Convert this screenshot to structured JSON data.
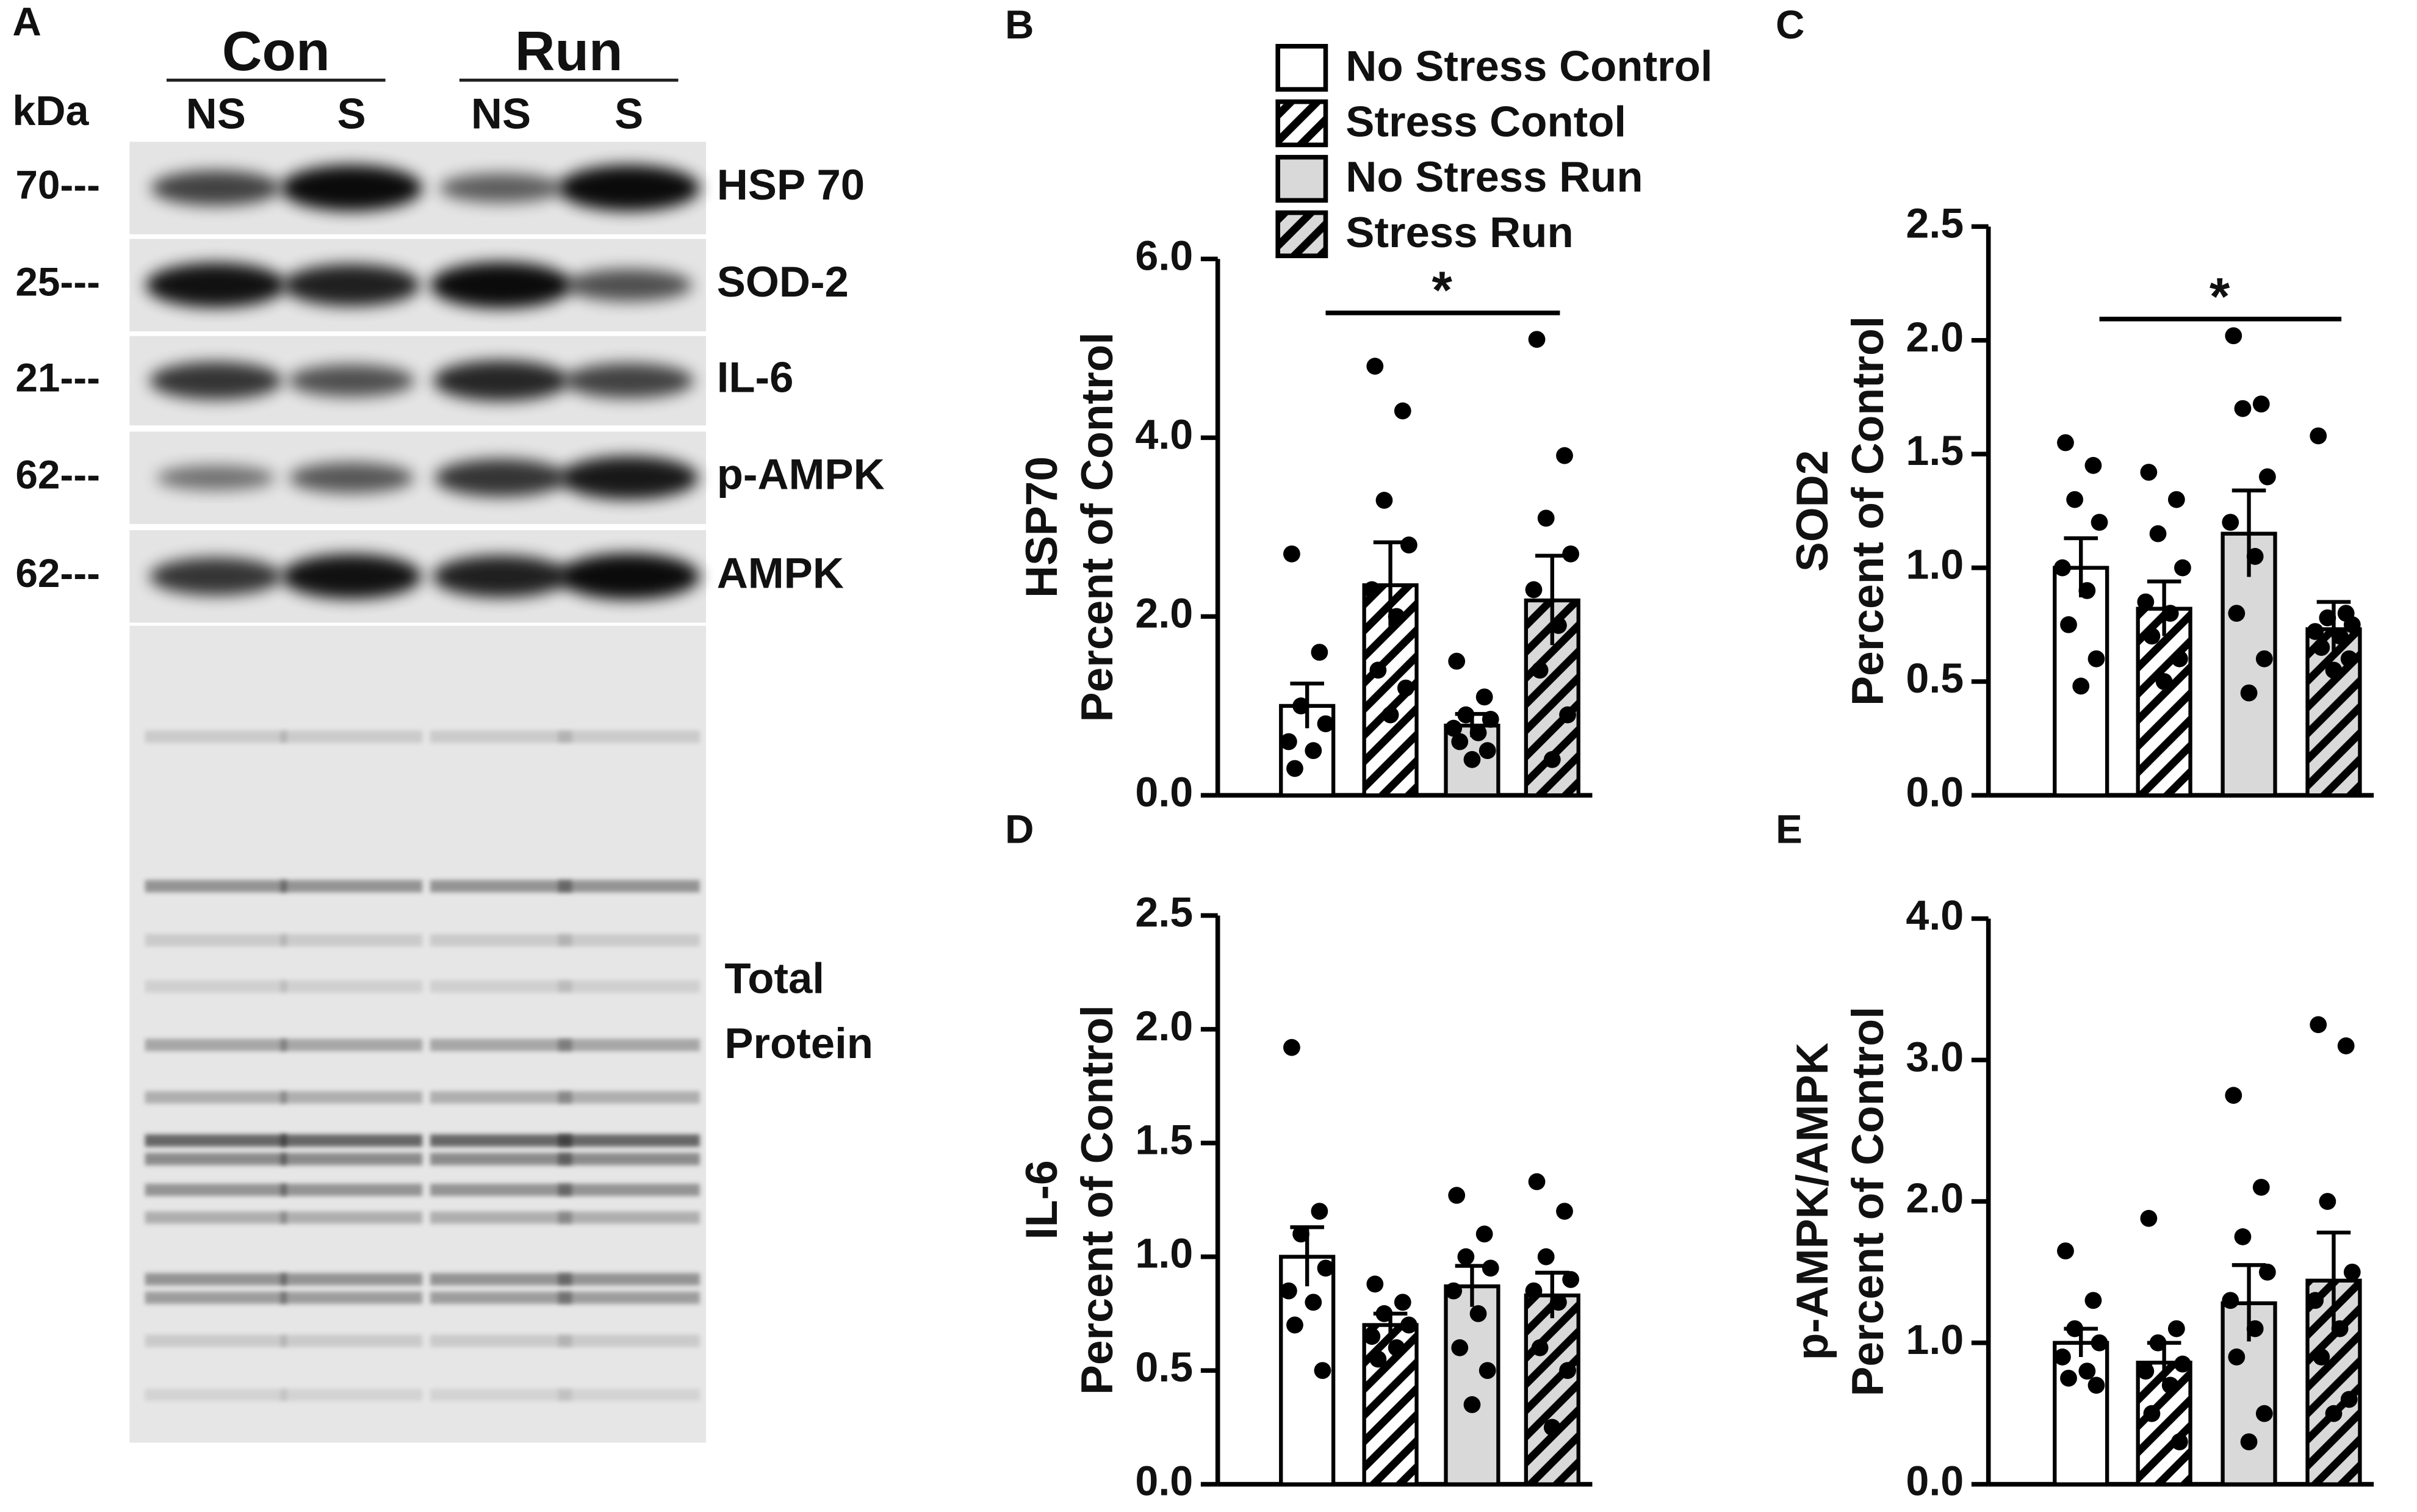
{
  "blot": {
    "panel": "A",
    "groups": [
      "Con",
      "Run"
    ],
    "unit": "kDa",
    "lanes": [
      "NS",
      "S",
      "NS",
      "S"
    ],
    "rows": [
      {
        "kda": "70---",
        "label": "HSP 70"
      },
      {
        "kda": "25---",
        "label": "SOD-2"
      },
      {
        "kda": "21---",
        "label": "IL-6"
      },
      {
        "kda": "62---",
        "label": "p-AMPK"
      },
      {
        "kda": "62---",
        "label": "AMPK"
      }
    ],
    "total": [
      "Total",
      "Protein"
    ]
  },
  "legend": [
    {
      "name": "No Stress Control",
      "color": "#ffffff",
      "hatch": false
    },
    {
      "name": "Stress Contol",
      "color": "#ffffff",
      "hatch": true
    },
    {
      "name": "No Stress Run",
      "color": "#d9d9d9",
      "hatch": false
    },
    {
      "name": "Stress Run",
      "color": "#d9d9d9",
      "hatch": true
    }
  ],
  "chart_data": [
    {
      "type": "bar",
      "panel": "B",
      "ylabel": [
        "HSP70",
        "Percent of Control"
      ],
      "values": [
        1.0,
        2.35,
        0.78,
        2.18
      ],
      "errors": [
        0.25,
        0.48,
        0.13,
        0.5
      ],
      "points": [
        [
          2.7,
          1.6,
          1.0,
          0.8,
          0.6,
          0.5,
          0.3
        ],
        [
          4.8,
          4.3,
          3.3,
          2.8,
          2.3,
          2.0,
          1.4,
          1.2,
          0.9
        ],
        [
          1.5,
          1.1,
          0.9,
          0.85,
          0.75,
          0.7,
          0.6,
          0.5,
          0.4
        ],
        [
          5.1,
          3.8,
          3.1,
          2.7,
          2.3,
          1.9,
          1.4,
          0.9,
          0.4
        ]
      ],
      "ylim": [
        0,
        6
      ],
      "yticks": [
        {
          "value": 0,
          "label": "0.0"
        },
        {
          "value": 2,
          "label": "2.0"
        },
        {
          "value": 4,
          "label": "4.0"
        },
        {
          "value": 6,
          "label": "6.0"
        }
      ],
      "significance": "*"
    },
    {
      "type": "bar",
      "panel": "C",
      "ylabel": [
        "SOD2",
        "Percent of Control"
      ],
      "values": [
        1.0,
        0.82,
        1.15,
        0.73
      ],
      "errors": [
        0.13,
        0.12,
        0.19,
        0.12
      ],
      "points": [
        [
          1.55,
          1.45,
          1.3,
          1.2,
          1.0,
          0.9,
          0.75,
          0.6,
          0.48
        ],
        [
          1.42,
          1.3,
          1.15,
          1.0,
          0.85,
          0.8,
          0.7,
          0.6,
          0.5
        ],
        [
          2.02,
          1.72,
          1.7,
          1.4,
          1.2,
          1.05,
          0.8,
          0.6,
          0.45
        ],
        [
          1.58,
          0.8,
          0.78,
          0.75,
          0.72,
          0.7,
          0.65,
          0.6,
          0.55
        ]
      ],
      "ylim": [
        0,
        2.5
      ],
      "yticks": [
        {
          "value": 0,
          "label": "0.0"
        },
        0.5,
        {
          "value": 1,
          "label": "1.0"
        },
        1.5,
        {
          "value": 2,
          "label": "2.0"
        },
        2.5
      ],
      "significance": "*"
    },
    {
      "type": "bar",
      "panel": "D",
      "ylabel": [
        "IL-6",
        "Percent of Control"
      ],
      "values": [
        1.0,
        0.7,
        0.87,
        0.83
      ],
      "errors": [
        0.13,
        0.05,
        0.09,
        0.1
      ],
      "points": [
        [
          1.92,
          1.2,
          1.1,
          0.95,
          0.85,
          0.8,
          0.7,
          0.5
        ],
        [
          0.88,
          0.8,
          0.75,
          0.7,
          0.65,
          0.6,
          0.55
        ],
        [
          1.27,
          1.1,
          1.0,
          0.95,
          0.85,
          0.75,
          0.6,
          0.5,
          0.35
        ],
        [
          1.33,
          1.2,
          1.0,
          0.9,
          0.85,
          0.8,
          0.6,
          0.5,
          0.25
        ]
      ],
      "ylim": [
        0,
        2.5
      ],
      "yticks": [
        {
          "value": 0,
          "label": "0.0"
        },
        0.5,
        {
          "value": 1,
          "label": "1.0"
        },
        1.5,
        {
          "value": 2,
          "label": "2.0"
        },
        2.5
      ]
    },
    {
      "type": "bar",
      "panel": "E",
      "ylabel": [
        "p-AMPK/AMPK",
        "Percent of Control"
      ],
      "values": [
        1.0,
        0.86,
        1.28,
        1.44
      ],
      "errors": [
        0.1,
        0.14,
        0.27,
        0.34
      ],
      "points": [
        [
          1.65,
          1.3,
          1.1,
          1.0,
          0.9,
          0.8,
          0.75,
          0.7
        ],
        [
          1.88,
          1.1,
          1.0,
          0.85,
          0.8,
          0.7,
          0.5,
          0.3
        ],
        [
          2.75,
          2.1,
          1.75,
          1.5,
          1.3,
          1.1,
          0.9,
          0.5,
          0.3
        ],
        [
          3.25,
          3.1,
          2.0,
          1.5,
          1.3,
          1.1,
          0.9,
          0.6,
          0.5
        ]
      ],
      "ylim": [
        0,
        4
      ],
      "yticks": [
        {
          "value": 0,
          "label": "0.0"
        },
        {
          "value": 1,
          "label": "1.0"
        },
        {
          "value": 2,
          "label": "2.0"
        },
        {
          "value": 3,
          "label": "3.0"
        },
        {
          "value": 4,
          "label": "4.0"
        }
      ]
    }
  ]
}
